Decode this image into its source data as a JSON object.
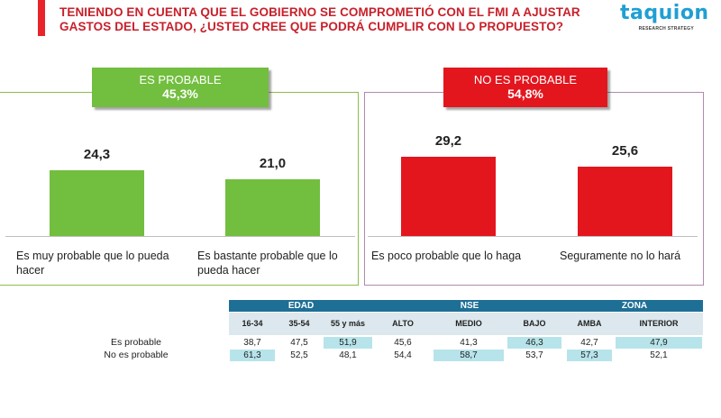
{
  "title_line1": "TENIENDO EN CUENTA QUE EL GOBIERNO SE COMPROMETIÓ CON EL FMI A AJUSTAR",
  "title_line2": "GASTOS DEL ESTADO, ¿USTED CREE QUE PODRÁ CUMPLIR CON LO PROPUESTO?",
  "brand": {
    "name": "taquion",
    "tagline": "RESEARCH STRATEGY",
    "name_color": "#1f9fd3"
  },
  "colors": {
    "green": "#72be3f",
    "red": "#e3161e",
    "accent": "#e8242a",
    "table_header": "#1e6f96",
    "highlight": "#b7e4ea"
  },
  "groups": {
    "probable": {
      "label": "ES PROBABLE",
      "value": "45,3%"
    },
    "no_probable": {
      "label": "NO ES PROBABLE",
      "value": "54,8%"
    }
  },
  "chart_data": {
    "type": "bar",
    "title": "TENIENDO EN CUENTA QUE EL GOBIERNO SE COMPROMETIÓ CON EL FMI A AJUSTAR GASTOS DEL ESTADO, ¿USTED CREE QUE PODRÁ CUMPLIR CON LO PROPUESTO?",
    "categories": [
      "Es muy probable que lo pueda hacer",
      "Es bastante probable que lo pueda hacer",
      "Es poco probable que lo haga",
      "Seguramente no lo hará"
    ],
    "values": [
      24.3,
      21.0,
      29.2,
      25.6
    ],
    "value_labels": [
      "24,3",
      "21,0",
      "29,2",
      "25,6"
    ],
    "group": [
      "probable",
      "probable",
      "no_probable",
      "no_probable"
    ],
    "ylim": [
      0,
      60
    ],
    "xlabel": "",
    "ylabel": ""
  },
  "table": {
    "groups": [
      "EDAD",
      "NSE",
      "ZONA"
    ],
    "columns": [
      "16-34",
      "35-54",
      "55 y más",
      "ALTO",
      "MEDIO",
      "BAJO",
      "AMBA",
      "INTERIOR"
    ],
    "column_group": [
      "EDAD",
      "EDAD",
      "EDAD",
      "NSE",
      "NSE",
      "NSE",
      "ZONA",
      "ZONA"
    ],
    "rows": [
      {
        "label": "Es probable",
        "values": [
          "38,7",
          "47,5",
          "51,9",
          "45,6",
          "41,3",
          "46,3",
          "42,7",
          "47,9"
        ]
      },
      {
        "label": "No es probable",
        "values": [
          "61,3",
          "52,5",
          "48,1",
          "54,4",
          "58,7",
          "53,7",
          "57,3",
          "52,1"
        ]
      }
    ]
  }
}
